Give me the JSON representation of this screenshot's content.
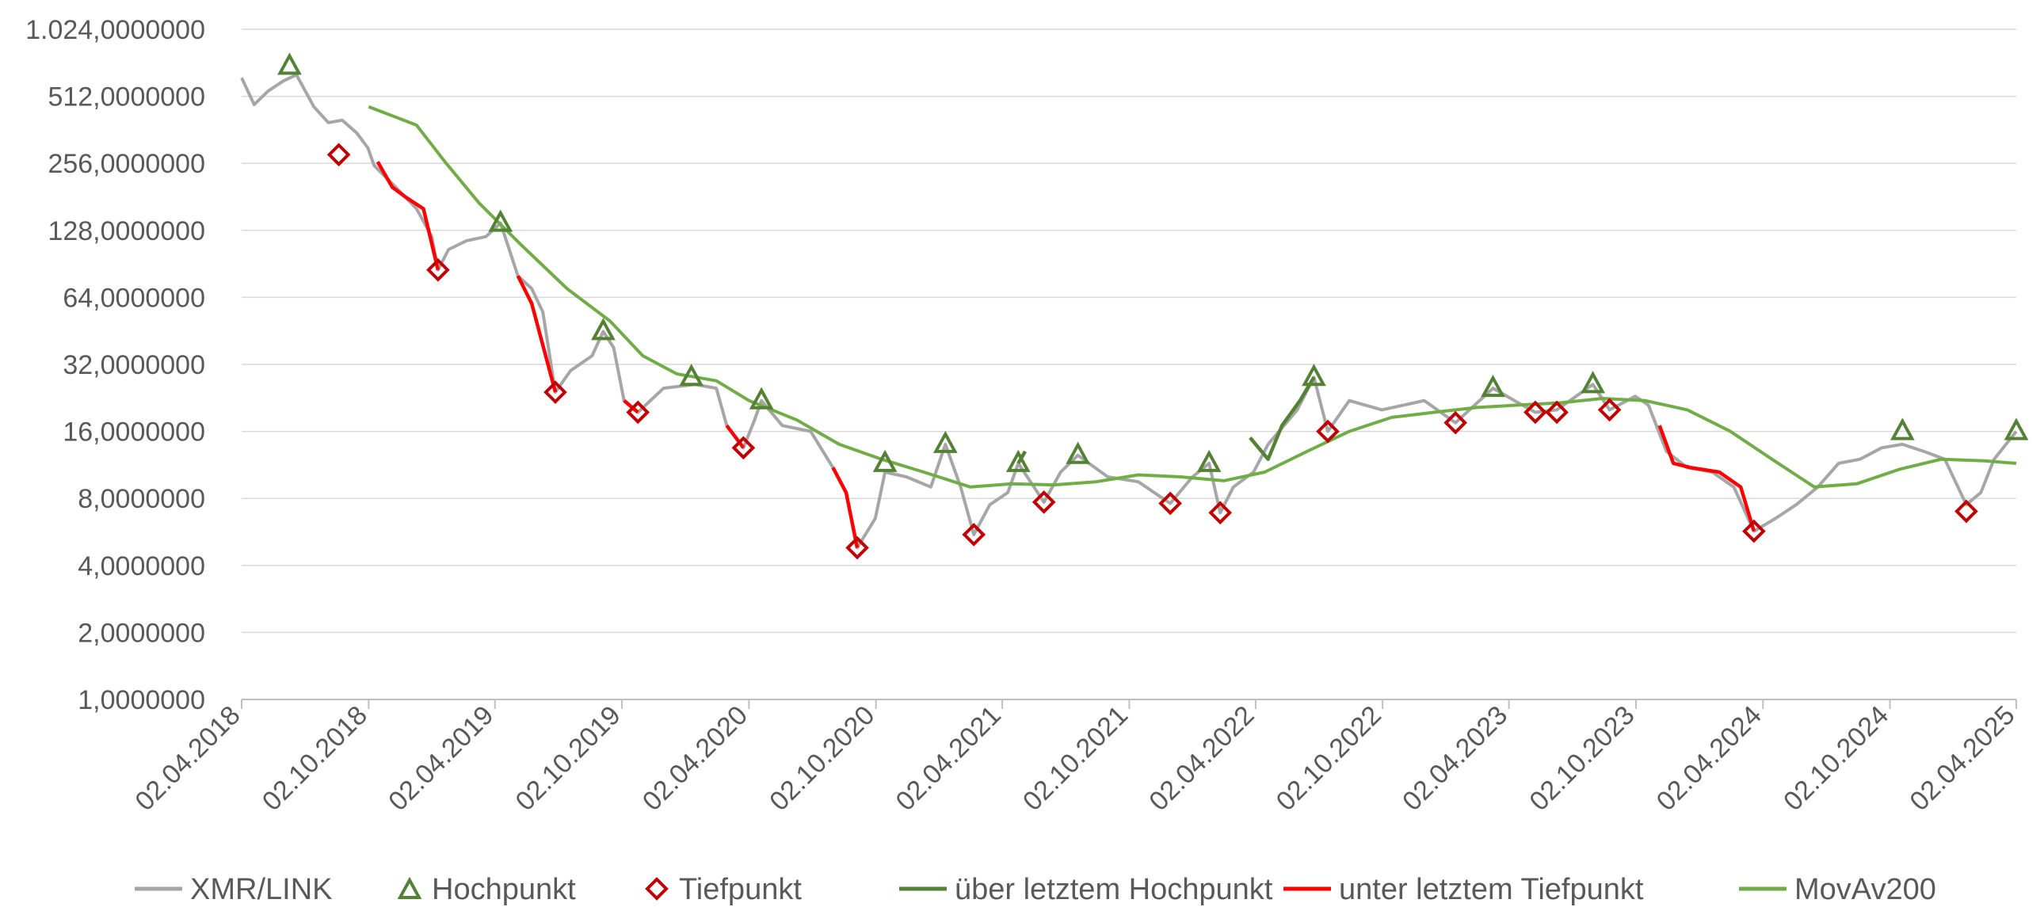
{
  "chart_data": {
    "type": "line",
    "title": "",
    "xlabel": "",
    "ylabel": "",
    "y_scale": "log2",
    "ylim": [
      1,
      1024
    ],
    "y_ticks": [
      "1,0000000",
      "2,0000000",
      "4,0000000",
      "8,0000000",
      "16,0000000",
      "32,0000000",
      "64,0000000",
      "128,0000000",
      "256,0000000",
      "512,0000000",
      "1.024,0000000"
    ],
    "y_tick_values": [
      1,
      2,
      4,
      8,
      16,
      32,
      64,
      128,
      256,
      512,
      1024
    ],
    "xlim": [
      "2018-04-02",
      "2025-04-02"
    ],
    "x_ticks": [
      "02.04.2018",
      "02.10.2018",
      "02.04.2019",
      "02.10.2019",
      "02.04.2020",
      "02.10.2020",
      "02.04.2021",
      "02.10.2021",
      "02.04.2022",
      "02.10.2022",
      "02.04.2023",
      "02.10.2023",
      "02.04.2024",
      "02.10.2024",
      "02.04.2025"
    ],
    "x_tick_dates": [
      "2018-04-02",
      "2018-10-02",
      "2019-04-02",
      "2019-10-02",
      "2020-04-02",
      "2020-10-02",
      "2021-04-02",
      "2021-10-02",
      "2022-04-02",
      "2022-10-02",
      "2023-04-02",
      "2023-10-02",
      "2024-04-02",
      "2024-10-02",
      "2025-04-02"
    ],
    "grid": "horizontal",
    "legend_position": "bottom",
    "colors": {
      "price": "#a6a6a6",
      "peak": "#548235",
      "trough": "#c00000",
      "above_peak": "#548235",
      "below_trough": "#ff0000",
      "movavg": "#70ad47",
      "grid": "#d9d9d9",
      "axis": "#bfbfbf",
      "text": "#595959"
    },
    "legend": [
      {
        "label": "XMR/LINK",
        "marker": "line",
        "color": "#a6a6a6"
      },
      {
        "label": "Hochpunkt",
        "marker": "triangle",
        "color": "#548235"
      },
      {
        "label": "Tiefpunkt",
        "marker": "diamond",
        "color": "#c00000"
      },
      {
        "label": "über letztem Hochpunkt",
        "marker": "line",
        "color": "#548235"
      },
      {
        "label": "unter letztem Tiefpunkt",
        "marker": "line",
        "color": "#ff0000"
      },
      {
        "label": "MovAv200",
        "marker": "line",
        "color": "#70ad47"
      }
    ],
    "series": [
      {
        "name": "XMR/LINK",
        "points": [
          [
            "2018-04-02",
            620
          ],
          [
            "2018-04-20",
            470
          ],
          [
            "2018-05-10",
            540
          ],
          [
            "2018-06-01",
            600
          ],
          [
            "2018-06-20",
            640
          ],
          [
            "2018-07-15",
            460
          ],
          [
            "2018-08-05",
            390
          ],
          [
            "2018-08-25",
            400
          ],
          [
            "2018-09-15",
            350
          ],
          [
            "2018-10-01",
            300
          ],
          [
            "2018-10-10",
            250
          ],
          [
            "2018-11-10",
            200
          ],
          [
            "2018-12-10",
            160
          ],
          [
            "2019-01-01",
            120
          ],
          [
            "2019-01-10",
            85
          ],
          [
            "2019-01-25",
            105
          ],
          [
            "2019-02-20",
            115
          ],
          [
            "2019-03-20",
            120
          ],
          [
            "2019-04-01",
            130
          ],
          [
            "2019-04-10",
            138
          ],
          [
            "2019-05-05",
            80
          ],
          [
            "2019-05-25",
            70
          ],
          [
            "2019-06-10",
            55
          ],
          [
            "2019-06-28",
            24
          ],
          [
            "2019-07-20",
            30
          ],
          [
            "2019-08-20",
            35
          ],
          [
            "2019-09-05",
            45
          ],
          [
            "2019-09-20",
            38
          ],
          [
            "2019-10-05",
            22
          ],
          [
            "2019-10-25",
            19.5
          ],
          [
            "2019-12-01",
            25
          ],
          [
            "2020-01-15",
            26
          ],
          [
            "2020-02-15",
            25
          ],
          [
            "2020-03-01",
            17
          ],
          [
            "2020-03-25",
            13.5
          ],
          [
            "2020-04-10",
            18
          ],
          [
            "2020-04-20",
            22
          ],
          [
            "2020-05-20",
            17
          ],
          [
            "2020-06-30",
            16
          ],
          [
            "2020-08-01",
            11
          ],
          [
            "2020-08-20",
            8.5
          ],
          [
            "2020-09-05",
            4.8
          ],
          [
            "2020-10-01",
            6.5
          ],
          [
            "2020-10-15",
            10.5
          ],
          [
            "2020-11-15",
            10
          ],
          [
            "2020-12-20",
            9
          ],
          [
            "2021-01-10",
            14
          ],
          [
            "2021-02-01",
            9
          ],
          [
            "2021-02-20",
            5.5
          ],
          [
            "2021-03-15",
            7.5
          ],
          [
            "2021-04-10",
            8.5
          ],
          [
            "2021-04-25",
            11.5
          ],
          [
            "2021-06-01",
            7.7
          ],
          [
            "2021-06-25",
            10.5
          ],
          [
            "2021-07-20",
            12.5
          ],
          [
            "2021-09-01",
            10
          ],
          [
            "2021-10-15",
            9.5
          ],
          [
            "2021-11-30",
            7.6
          ],
          [
            "2022-01-01",
            10
          ],
          [
            "2022-01-25",
            11.5
          ],
          [
            "2022-02-10",
            6.9
          ],
          [
            "2022-03-01",
            9
          ],
          [
            "2022-03-30",
            10.5
          ],
          [
            "2022-04-20",
            14
          ],
          [
            "2022-06-01",
            20
          ],
          [
            "2022-06-25",
            28
          ],
          [
            "2022-07-15",
            16
          ],
          [
            "2022-08-15",
            22
          ],
          [
            "2022-10-01",
            20
          ],
          [
            "2022-12-01",
            22
          ],
          [
            "2023-01-15",
            17.5
          ],
          [
            "2023-03-10",
            25
          ],
          [
            "2023-04-10",
            22
          ],
          [
            "2023-05-10",
            19.5
          ],
          [
            "2023-06-10",
            20
          ],
          [
            "2023-08-01",
            26
          ],
          [
            "2023-08-25",
            20
          ],
          [
            "2023-10-01",
            23
          ],
          [
            "2023-10-20",
            21
          ],
          [
            "2023-11-15",
            13
          ],
          [
            "2023-12-15",
            11
          ],
          [
            "2024-01-20",
            10.5
          ],
          [
            "2024-02-20",
            9
          ],
          [
            "2024-03-20",
            5.7
          ],
          [
            "2024-04-20",
            6.5
          ],
          [
            "2024-05-20",
            7.5
          ],
          [
            "2024-06-20",
            9
          ],
          [
            "2024-07-20",
            11.5
          ],
          [
            "2024-08-20",
            12
          ],
          [
            "2024-09-20",
            13.5
          ],
          [
            "2024-10-20",
            14
          ],
          [
            "2024-11-20",
            13
          ],
          [
            "2024-12-20",
            12
          ],
          [
            "2025-01-20",
            7.5
          ],
          [
            "2025-02-10",
            8.5
          ],
          [
            "2025-03-01",
            12
          ],
          [
            "2025-04-02",
            16
          ]
        ]
      },
      {
        "name": "über letztem Hochpunkt",
        "segments": [
          [
            [
              "2021-04-25",
              11.5
            ],
            [
              "2021-05-05",
              13
            ]
          ],
          [
            [
              "2022-03-25",
              15
            ],
            [
              "2022-04-20",
              12
            ],
            [
              "2022-05-10",
              17
            ],
            [
              "2022-06-05",
              22
            ],
            [
              "2022-06-25",
              28
            ]
          ]
        ]
      },
      {
        "name": "unter letztem Tiefpunkt",
        "segments": [
          [
            [
              "2018-10-15",
              260
            ],
            [
              "2018-11-05",
              200
            ],
            [
              "2018-11-25",
              180
            ],
            [
              "2018-12-20",
              160
            ],
            [
              "2019-01-10",
              85
            ]
          ],
          [
            [
              "2019-05-05",
              80
            ],
            [
              "2019-05-25",
              60
            ],
            [
              "2019-06-28",
              24
            ]
          ],
          [
            [
              "2019-10-05",
              22
            ],
            [
              "2019-10-25",
              19.5
            ]
          ],
          [
            [
              "2020-03-01",
              17
            ],
            [
              "2020-03-25",
              13.5
            ]
          ],
          [
            [
              "2020-08-01",
              11
            ],
            [
              "2020-08-20",
              8.5
            ],
            [
              "2020-09-05",
              4.8
            ]
          ],
          [
            [
              "2023-11-05",
              17
            ],
            [
              "2023-11-25",
              11.5
            ],
            [
              "2023-12-20",
              11
            ],
            [
              "2024-01-30",
              10.5
            ],
            [
              "2024-03-01",
              9
            ],
            [
              "2024-03-20",
              5.7
            ]
          ]
        ]
      },
      {
        "name": "MovAv200",
        "points": [
          [
            "2018-10-02",
            460
          ],
          [
            "2018-12-10",
            380
          ],
          [
            "2019-01-20",
            260
          ],
          [
            "2019-03-10",
            170
          ],
          [
            "2019-05-10",
            110
          ],
          [
            "2019-07-15",
            70
          ],
          [
            "2019-09-15",
            50
          ],
          [
            "2019-11-01",
            35
          ],
          [
            "2019-12-20",
            29
          ],
          [
            "2020-02-15",
            27
          ],
          [
            "2020-04-02",
            22
          ],
          [
            "2020-06-10",
            18
          ],
          [
            "2020-08-10",
            14
          ],
          [
            "2020-10-10",
            12
          ],
          [
            "2020-12-10",
            10.5
          ],
          [
            "2021-02-15",
            9
          ],
          [
            "2021-04-15",
            9.3
          ],
          [
            "2021-06-15",
            9.2
          ],
          [
            "2021-08-15",
            9.5
          ],
          [
            "2021-10-15",
            10.2
          ],
          [
            "2021-12-15",
            10
          ],
          [
            "2022-02-15",
            9.6
          ],
          [
            "2022-04-15",
            10.5
          ],
          [
            "2022-06-15",
            13
          ],
          [
            "2022-08-15",
            16
          ],
          [
            "2022-10-15",
            18.5
          ],
          [
            "2022-12-15",
            19.5
          ],
          [
            "2023-02-15",
            20.5
          ],
          [
            "2023-04-15",
            21
          ],
          [
            "2023-06-15",
            21.5
          ],
          [
            "2023-08-15",
            22.5
          ],
          [
            "2023-10-15",
            22
          ],
          [
            "2023-12-15",
            20
          ],
          [
            "2024-02-15",
            16
          ],
          [
            "2024-04-15",
            12
          ],
          [
            "2024-06-15",
            9
          ],
          [
            "2024-08-15",
            9.3
          ],
          [
            "2024-10-15",
            10.8
          ],
          [
            "2024-12-15",
            12
          ],
          [
            "2025-02-15",
            11.8
          ],
          [
            "2025-04-02",
            11.5
          ]
        ]
      },
      {
        "name": "Hochpunkt",
        "points": [
          [
            "2018-06-10",
            700
          ],
          [
            "2019-04-10",
            138
          ],
          [
            "2019-09-05",
            45
          ],
          [
            "2020-01-10",
            28
          ],
          [
            "2020-04-20",
            22
          ],
          [
            "2020-10-15",
            11.5
          ],
          [
            "2021-01-10",
            14
          ],
          [
            "2021-04-25",
            11.5
          ],
          [
            "2021-07-20",
            12.5
          ],
          [
            "2022-01-25",
            11.5
          ],
          [
            "2022-06-25",
            28
          ],
          [
            "2023-03-10",
            25
          ],
          [
            "2023-08-01",
            26
          ],
          [
            "2024-10-20",
            16
          ],
          [
            "2025-04-02",
            16
          ]
        ]
      },
      {
        "name": "Tiefpunkt",
        "points": [
          [
            "2018-08-20",
            280
          ],
          [
            "2019-01-10",
            85
          ],
          [
            "2019-06-28",
            24
          ],
          [
            "2019-10-25",
            19.5
          ],
          [
            "2020-03-25",
            13.5
          ],
          [
            "2020-09-05",
            4.8
          ],
          [
            "2021-02-20",
            5.5
          ],
          [
            "2021-06-01",
            7.7
          ],
          [
            "2021-11-30",
            7.6
          ],
          [
            "2022-02-10",
            6.9
          ],
          [
            "2022-07-15",
            16
          ],
          [
            "2023-01-15",
            17.5
          ],
          [
            "2023-05-10",
            19.5
          ],
          [
            "2023-06-10",
            19.5
          ],
          [
            "2023-08-25",
            20
          ],
          [
            "2024-03-20",
            5.7
          ],
          [
            "2025-01-20",
            7.0
          ]
        ]
      }
    ]
  }
}
